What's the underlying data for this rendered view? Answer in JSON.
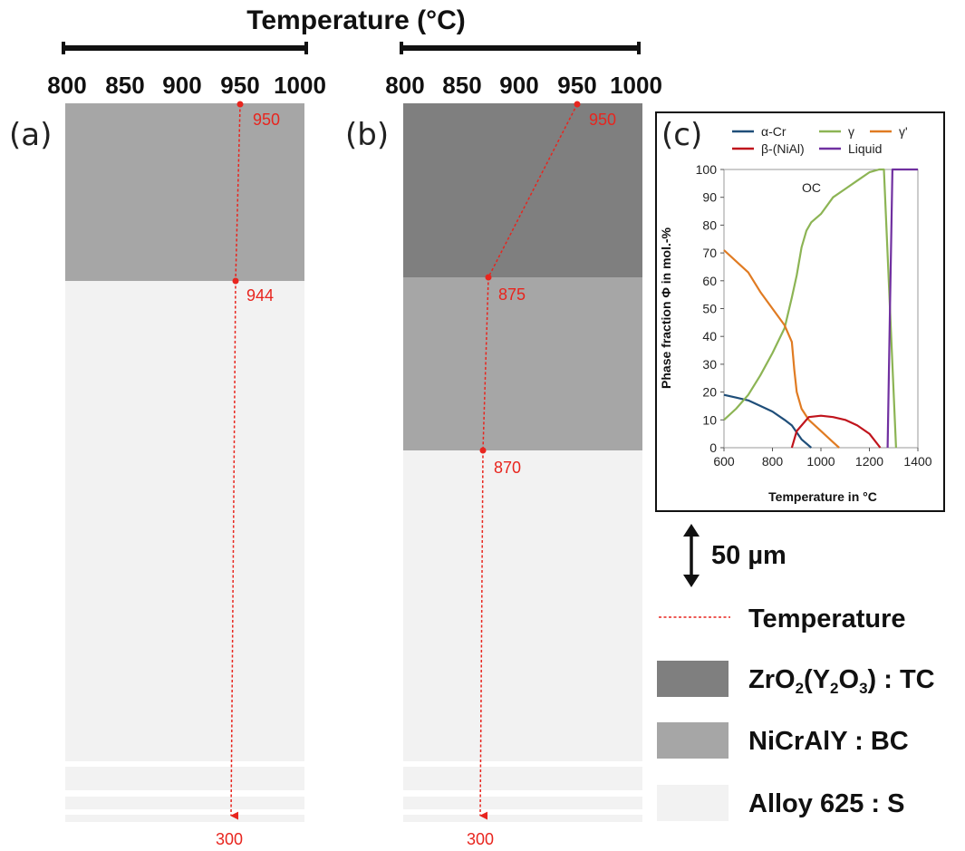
{
  "top_axis": {
    "title": "Temperature (°C)",
    "ticks": [
      "800",
      "850",
      "900",
      "950",
      "1000"
    ]
  },
  "panels": {
    "a": {
      "label": "(a)",
      "points": [
        "950",
        "944",
        "300"
      ]
    },
    "b": {
      "label": "(b)",
      "points": [
        "950",
        "875",
        "870",
        "300"
      ]
    }
  },
  "colors": {
    "tc": "#7f7f7f",
    "bc": "#a6a6a6",
    "substrate": "#f2f2f2",
    "temperature_line": "#e8251e",
    "alpha_cr": "#1f4e79",
    "gamma": "#8cb454",
    "gamma_prime": "#e07b22",
    "beta_nial": "#c0141c",
    "liquid": "#7030a0"
  },
  "inset": {
    "label": "(c)",
    "annotation": "OC",
    "legend": [
      "α-Cr",
      "γ",
      "γ'",
      "β-(NiAl)",
      "Liquid"
    ],
    "ylabel": "Phase fraction Φ in mol.-%",
    "xlabel": "Temperature in °C",
    "xticks": [
      "600",
      "800",
      "1000",
      "1200",
      "1400"
    ],
    "yticks": [
      "0",
      "10",
      "20",
      "30",
      "40",
      "50",
      "60",
      "70",
      "80",
      "90",
      "100"
    ]
  },
  "chart_data": {
    "type": "line",
    "xlabel": "Temperature in °C",
    "ylabel": "Phase fraction Φ in mol.-%",
    "xlim": [
      600,
      1400
    ],
    "ylim": [
      0,
      100
    ],
    "series": [
      {
        "name": "α-Cr",
        "x": [
          600,
          650,
          700,
          750,
          800,
          850,
          880,
          920,
          960
        ],
        "y": [
          19,
          18,
          17,
          15,
          13,
          10,
          8,
          3,
          0
        ]
      },
      {
        "name": "γ",
        "x": [
          600,
          650,
          700,
          750,
          800,
          850,
          880,
          900,
          920,
          940,
          960,
          1000,
          1050,
          1100,
          1150,
          1200,
          1240,
          1260,
          1310
        ],
        "y": [
          10,
          14,
          19,
          26,
          34,
          43,
          54,
          62,
          72,
          78,
          81,
          84,
          90,
          93,
          96,
          99,
          100,
          100,
          0
        ]
      },
      {
        "name": "γ'",
        "x": [
          600,
          650,
          700,
          750,
          800,
          850,
          880,
          890,
          900,
          920,
          950,
          1000,
          1050,
          1075
        ],
        "y": [
          71,
          67,
          63,
          56,
          50,
          44,
          38,
          28,
          20,
          14,
          10,
          6,
          2,
          0
        ]
      },
      {
        "name": "β-(NiAl)",
        "x": [
          880,
          900,
          950,
          1000,
          1050,
          1100,
          1150,
          1200,
          1245
        ],
        "y": [
          0,
          6,
          11,
          11.5,
          11,
          10,
          8,
          5,
          0
        ]
      },
      {
        "name": "Liquid",
        "x": [
          1275,
          1285,
          1295,
          1310,
          1400
        ],
        "y": [
          0,
          50,
          100,
          100,
          100
        ]
      }
    ],
    "annotations": [
      "OC"
    ]
  },
  "scale_bar": {
    "label": "50 µm"
  },
  "legend": {
    "temperature": "Temperature",
    "tc": {
      "formula_parts": [
        "ZrO",
        "2",
        "(Y",
        "2",
        "O",
        "3",
        ") : TC"
      ]
    },
    "bc": "NiCrAlY : BC",
    "substrate": "Alloy 625 : S"
  }
}
